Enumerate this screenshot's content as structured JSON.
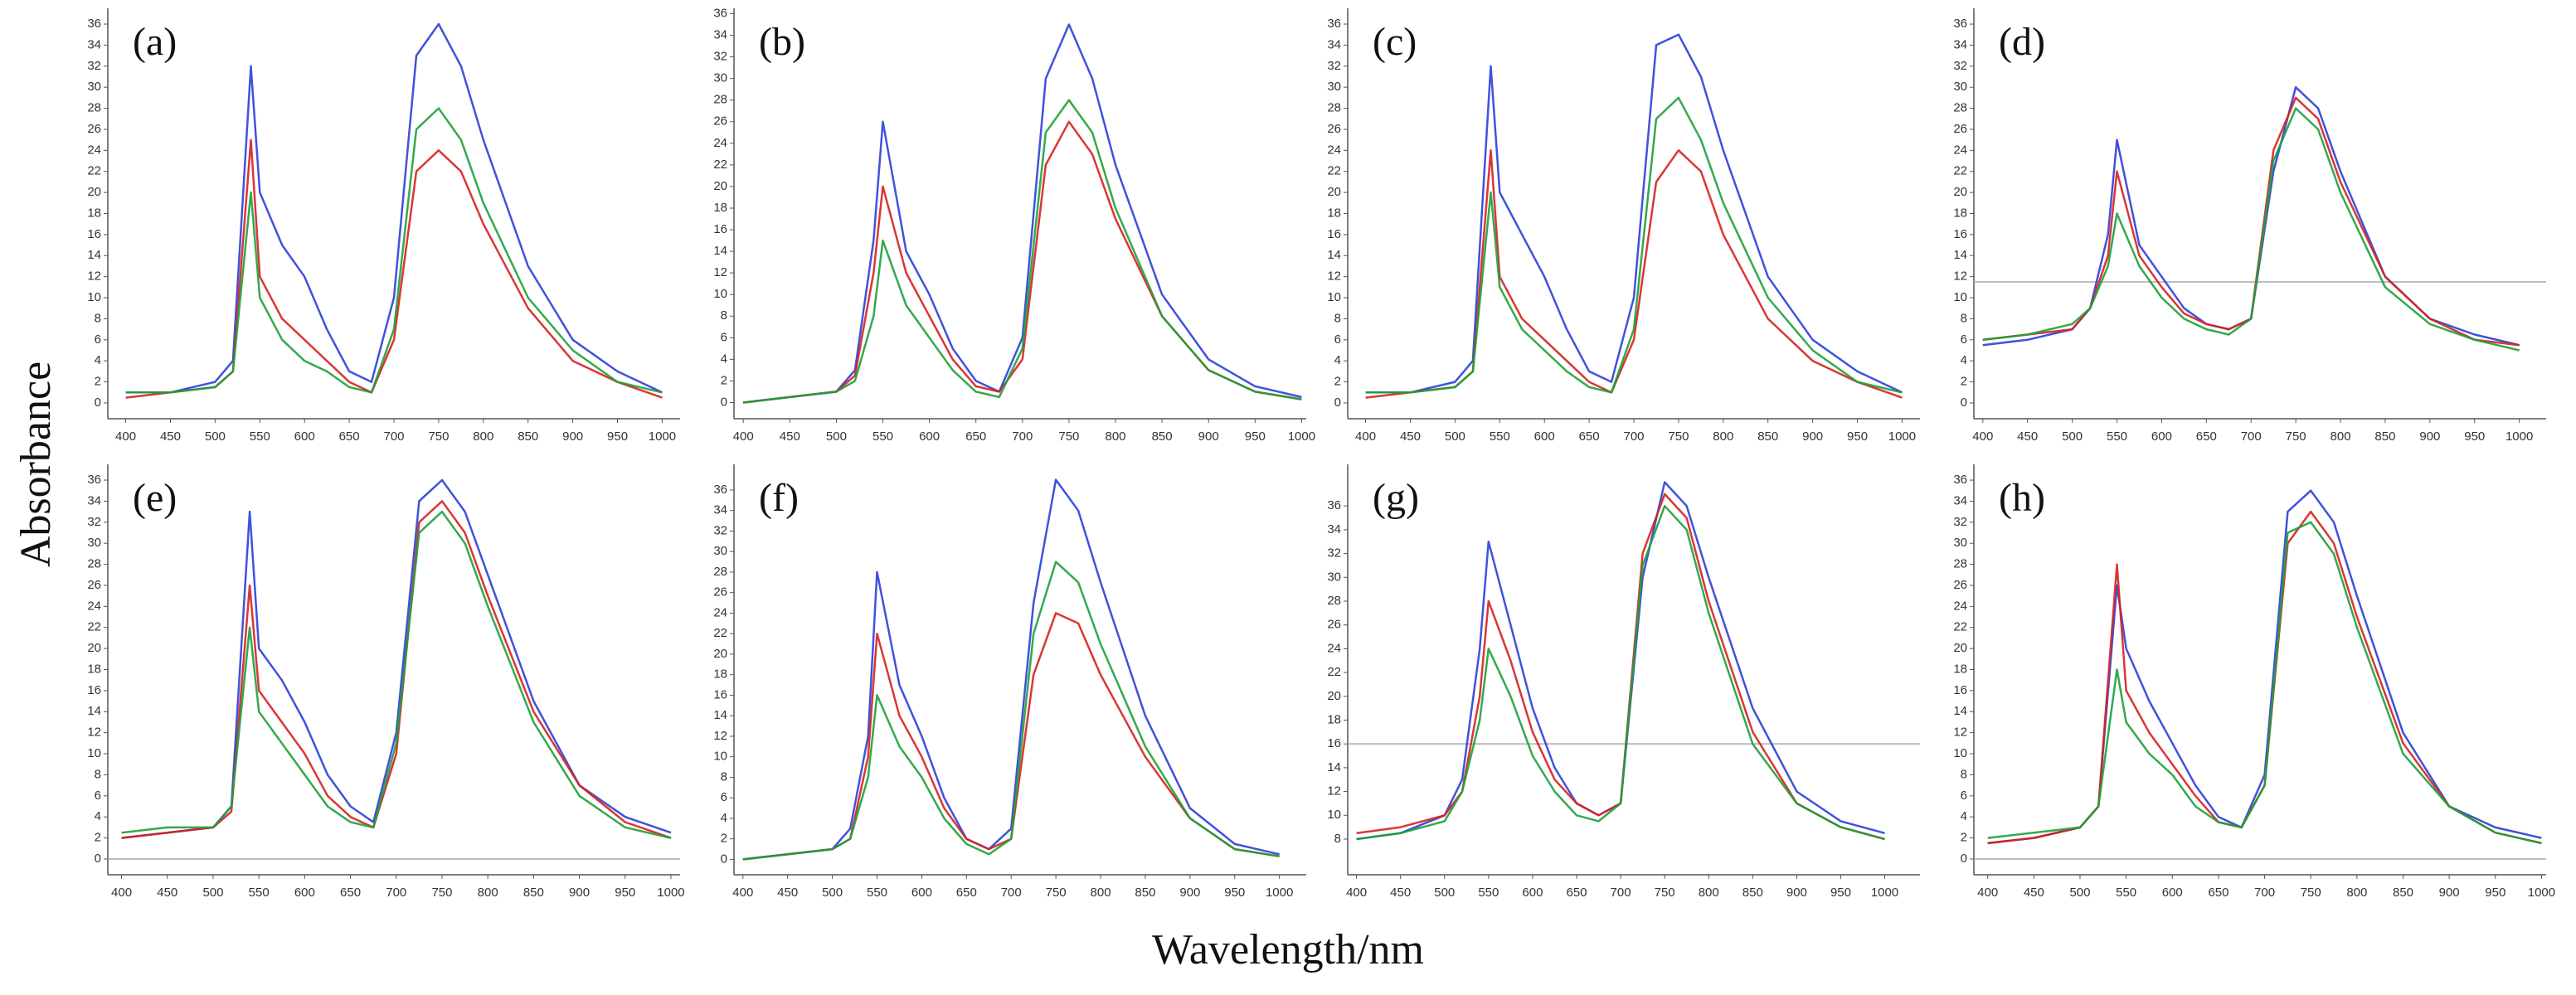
{
  "figure": {
    "xlabel": "Wavelength/nm",
    "ylabel": "Absorbance"
  },
  "chart_data": [
    {
      "type": "line",
      "title": "(a)",
      "x": [
        400,
        450,
        500,
        520,
        540,
        550,
        575,
        600,
        625,
        650,
        675,
        700,
        725,
        750,
        775,
        800,
        850,
        900,
        950,
        1000
      ],
      "series": [
        {
          "color": "#2a3fd8",
          "values": [
            1,
            1,
            2,
            4,
            32,
            20,
            15,
            12,
            7,
            3,
            2,
            10,
            33,
            36,
            32,
            25,
            13,
            6,
            3,
            1
          ]
        },
        {
          "color": "#d62020",
          "values": [
            0.5,
            1,
            1.5,
            3,
            25,
            12,
            8,
            6,
            4,
            2,
            1,
            6,
            22,
            24,
            22,
            17,
            9,
            4,
            2,
            0.5
          ]
        },
        {
          "color": "#1ea03a",
          "values": [
            1,
            1,
            1.5,
            3,
            20,
            10,
            6,
            4,
            3,
            1.5,
            1,
            7,
            26,
            28,
            25,
            19,
            10,
            5,
            2,
            1
          ]
        }
      ],
      "xlim": [
        380,
        1020
      ],
      "ylim": [
        -1.5,
        37.5
      ],
      "xticks": [
        400,
        450,
        500,
        550,
        600,
        650,
        700,
        750,
        800,
        850,
        900,
        950,
        1000
      ],
      "yticks": [
        0,
        2,
        4,
        6,
        8,
        10,
        12,
        14,
        16,
        18,
        20,
        22,
        24,
        26,
        28,
        30,
        32,
        34,
        36
      ]
    },
    {
      "type": "line",
      "title": "(b)",
      "x": [
        400,
        450,
        500,
        520,
        540,
        550,
        575,
        600,
        625,
        650,
        675,
        700,
        725,
        750,
        775,
        800,
        850,
        900,
        950,
        1000
      ],
      "series": [
        {
          "color": "#2a3fd8",
          "values": [
            0,
            0.5,
            1,
            3,
            15,
            26,
            14,
            10,
            5,
            2,
            1,
            6,
            30,
            35,
            30,
            22,
            10,
            4,
            1.5,
            0.5
          ]
        },
        {
          "color": "#d62020",
          "values": [
            0,
            0.5,
            1,
            2.5,
            12,
            20,
            12,
            8,
            4,
            1.5,
            1,
            4,
            22,
            26,
            23,
            17,
            8,
            3,
            1,
            0.3
          ]
        },
        {
          "color": "#1ea03a",
          "values": [
            0,
            0.5,
            1,
            2,
            8,
            15,
            9,
            6,
            3,
            1,
            0.5,
            5,
            25,
            28,
            25,
            18,
            8,
            3,
            1,
            0.3
          ]
        }
      ],
      "xlim": [
        390,
        1005
      ],
      "ylim": [
        -1.5,
        36.5
      ],
      "xticks": [
        400,
        450,
        500,
        550,
        600,
        650,
        700,
        750,
        800,
        850,
        900,
        950,
        1000
      ],
      "yticks": [
        0,
        2,
        4,
        6,
        8,
        10,
        12,
        14,
        16,
        18,
        20,
        22,
        24,
        26,
        28,
        30,
        32,
        34,
        36
      ]
    },
    {
      "type": "line",
      "title": "(c)",
      "x": [
        400,
        450,
        500,
        520,
        540,
        550,
        575,
        600,
        625,
        650,
        675,
        700,
        725,
        750,
        775,
        800,
        850,
        900,
        950,
        1000
      ],
      "series": [
        {
          "color": "#2a3fd8",
          "values": [
            1,
            1,
            2,
            4,
            32,
            20,
            16,
            12,
            7,
            3,
            2,
            10,
            34,
            35,
            31,
            24,
            12,
            6,
            3,
            1
          ]
        },
        {
          "color": "#d62020",
          "values": [
            0.5,
            1,
            1.5,
            3,
            24,
            12,
            8,
            6,
            4,
            2,
            1,
            6,
            21,
            24,
            22,
            16,
            8,
            4,
            2,
            0.5
          ]
        },
        {
          "color": "#1ea03a",
          "values": [
            1,
            1,
            1.5,
            3,
            20,
            11,
            7,
            5,
            3,
            1.5,
            1,
            7,
            27,
            29,
            25,
            19,
            10,
            5,
            2,
            1
          ]
        }
      ],
      "xlim": [
        380,
        1020
      ],
      "ylim": [
        -1.5,
        37.5
      ],
      "xticks": [
        400,
        450,
        500,
        550,
        600,
        650,
        700,
        750,
        800,
        850,
        900,
        950,
        1000
      ],
      "yticks": [
        0,
        2,
        4,
        6,
        8,
        10,
        12,
        14,
        16,
        18,
        20,
        22,
        24,
        26,
        28,
        30,
        32,
        34,
        36
      ]
    },
    {
      "type": "line",
      "title": "(d)",
      "x": [
        400,
        450,
        500,
        520,
        540,
        550,
        575,
        600,
        625,
        650,
        675,
        700,
        725,
        750,
        775,
        800,
        850,
        900,
        950,
        1000
      ],
      "series": [
        {
          "color": "#2a3fd8",
          "values": [
            5.5,
            6,
            7,
            9,
            16,
            25,
            15,
            12,
            9,
            7.5,
            7,
            8,
            22,
            30,
            28,
            22,
            12,
            8,
            6.5,
            5.5
          ]
        },
        {
          "color": "#d62020",
          "values": [
            6,
            6.5,
            7,
            9,
            14,
            22,
            14,
            11,
            8.5,
            7.5,
            7,
            8,
            24,
            29,
            27,
            21,
            12,
            8,
            6,
            5.5
          ]
        },
        {
          "color": "#1ea03a",
          "values": [
            6,
            6.5,
            7.5,
            9,
            13,
            18,
            13,
            10,
            8,
            7,
            6.5,
            8,
            23,
            28,
            26,
            20,
            11,
            7.5,
            6,
            5
          ]
        }
      ],
      "xlim": [
        390,
        1030
      ],
      "ylim": [
        -1.5,
        37.5
      ],
      "xticks": [
        400,
        450,
        500,
        550,
        600,
        650,
        700,
        750,
        800,
        850,
        900,
        950,
        1000
      ],
      "yticks": [
        0,
        2,
        4,
        6,
        8,
        10,
        12,
        14,
        16,
        18,
        20,
        22,
        24,
        26,
        28,
        30,
        32,
        34,
        36
      ],
      "hline": 11.5
    },
    {
      "type": "line",
      "title": "(e)",
      "x": [
        400,
        450,
        500,
        520,
        540,
        550,
        575,
        600,
        625,
        650,
        675,
        700,
        725,
        750,
        775,
        800,
        850,
        900,
        950,
        1000
      ],
      "series": [
        {
          "color": "#2a3fd8",
          "values": [
            2,
            2.5,
            3,
            5,
            33,
            20,
            17,
            13,
            8,
            5,
            3.5,
            12,
            34,
            36,
            33,
            27,
            15,
            7,
            4,
            2.5
          ]
        },
        {
          "color": "#d62020",
          "values": [
            2,
            2.5,
            3,
            4.5,
            26,
            16,
            13,
            10,
            6,
            4,
            3,
            10,
            32,
            34,
            31,
            25,
            14,
            7,
            3.5,
            2
          ]
        },
        {
          "color": "#1ea03a",
          "values": [
            2.5,
            3,
            3,
            5,
            22,
            14,
            11,
            8,
            5,
            3.5,
            3,
            11,
            31,
            33,
            30,
            24,
            13,
            6,
            3,
            2
          ]
        }
      ],
      "xlim": [
        385,
        1010
      ],
      "ylim": [
        -1.5,
        37.5
      ],
      "xticks": [
        400,
        450,
        500,
        550,
        600,
        650,
        700,
        750,
        800,
        850,
        900,
        950,
        1000
      ],
      "yticks": [
        0,
        2,
        4,
        6,
        8,
        10,
        12,
        14,
        16,
        18,
        20,
        22,
        24,
        26,
        28,
        30,
        32,
        34,
        36
      ],
      "hline": 0
    },
    {
      "type": "line",
      "title": "(f)",
      "x": [
        400,
        450,
        500,
        520,
        540,
        550,
        575,
        600,
        625,
        650,
        675,
        700,
        725,
        750,
        775,
        800,
        850,
        900,
        950,
        1000
      ],
      "series": [
        {
          "color": "#2a3fd8",
          "values": [
            0,
            0.5,
            1,
            3,
            12,
            28,
            17,
            12,
            6,
            2,
            1,
            3,
            25,
            37,
            34,
            27,
            14,
            5,
            1.5,
            0.5
          ]
        },
        {
          "color": "#d62020",
          "values": [
            0,
            0.5,
            1,
            2,
            10,
            22,
            14,
            10,
            5,
            2,
            1,
            2,
            18,
            24,
            23,
            18,
            10,
            4,
            1,
            0.3
          ]
        },
        {
          "color": "#1ea03a",
          "values": [
            0,
            0.5,
            1,
            2,
            8,
            16,
            11,
            8,
            4,
            1.5,
            0.5,
            2,
            22,
            29,
            27,
            21,
            11,
            4,
            1,
            0.3
          ]
        }
      ],
      "xlim": [
        390,
        1030
      ],
      "ylim": [
        -1.5,
        38.5
      ],
      "xticks": [
        400,
        450,
        500,
        550,
        600,
        650,
        700,
        750,
        800,
        850,
        900,
        950,
        1000
      ],
      "yticks": [
        0,
        2,
        4,
        6,
        8,
        10,
        12,
        14,
        16,
        18,
        20,
        22,
        24,
        26,
        28,
        30,
        32,
        34,
        36
      ]
    },
    {
      "type": "line",
      "title": "(g)",
      "x": [
        400,
        450,
        500,
        520,
        540,
        550,
        575,
        600,
        625,
        650,
        675,
        700,
        725,
        750,
        775,
        800,
        850,
        900,
        950,
        1000
      ],
      "series": [
        {
          "color": "#2a3fd8",
          "values": [
            8,
            8.5,
            10,
            13,
            24,
            33,
            26,
            19,
            14,
            11,
            10,
            11,
            30,
            38,
            36,
            30,
            19,
            12,
            9.5,
            8.5
          ]
        },
        {
          "color": "#d62020",
          "values": [
            8.5,
            9,
            10,
            12,
            20,
            28,
            23,
            17,
            13,
            11,
            10,
            11,
            32,
            37,
            35,
            28,
            17,
            11,
            9,
            8
          ]
        },
        {
          "color": "#1ea03a",
          "values": [
            8,
            8.5,
            9.5,
            12,
            18,
            24,
            20,
            15,
            12,
            10,
            9.5,
            11,
            31,
            36,
            34,
            27,
            16,
            11,
            9,
            8
          ]
        }
      ],
      "xlim": [
        390,
        1040
      ],
      "ylim": [
        5,
        39.5
      ],
      "xticks": [
        400,
        450,
        500,
        550,
        600,
        650,
        700,
        750,
        800,
        850,
        900,
        950,
        1000
      ],
      "yticks": [
        8,
        10,
        12,
        14,
        16,
        18,
        20,
        22,
        24,
        26,
        28,
        30,
        32,
        34,
        36
      ],
      "hline": 16
    },
    {
      "type": "line",
      "title": "(h)",
      "x": [
        400,
        450,
        500,
        520,
        540,
        550,
        575,
        600,
        625,
        650,
        675,
        700,
        725,
        750,
        775,
        800,
        850,
        900,
        950,
        1000
      ],
      "series": [
        {
          "color": "#2a3fd8",
          "values": [
            1.5,
            2,
            3,
            5,
            26,
            20,
            15,
            11,
            7,
            4,
            3,
            8,
            33,
            35,
            32,
            25,
            12,
            5,
            3,
            2
          ]
        },
        {
          "color": "#d62020",
          "values": [
            1.5,
            2,
            3,
            5,
            28,
            16,
            12,
            9,
            6,
            3.5,
            3,
            7,
            30,
            33,
            30,
            23,
            11,
            5,
            2.5,
            1.5
          ]
        },
        {
          "color": "#1ea03a",
          "values": [
            2,
            2.5,
            3,
            5,
            18,
            13,
            10,
            8,
            5,
            3.5,
            3,
            7,
            31,
            32,
            29,
            22,
            10,
            5,
            2.5,
            1.5
          ]
        }
      ],
      "xlim": [
        385,
        1005
      ],
      "ylim": [
        -1.5,
        37.5
      ],
      "xticks": [
        400,
        450,
        500,
        550,
        600,
        650,
        700,
        750,
        800,
        850,
        900,
        950,
        1000
      ],
      "yticks": [
        0,
        2,
        4,
        6,
        8,
        10,
        12,
        14,
        16,
        18,
        20,
        22,
        24,
        26,
        28,
        30,
        32,
        34,
        36
      ],
      "hline": 0
    }
  ]
}
